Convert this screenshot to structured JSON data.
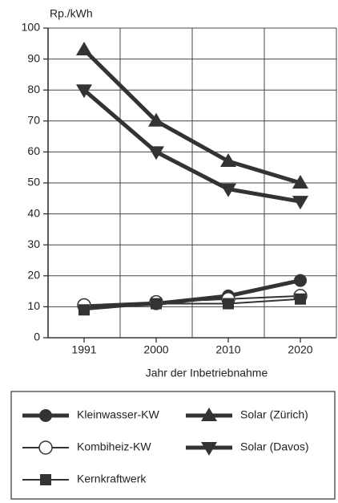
{
  "chart_data": {
    "type": "line",
    "y_label": "Rp./kWh",
    "x_label": "Jahr der Inbetriebnahme",
    "categories": [
      "1991",
      "2000",
      "2010",
      "2020"
    ],
    "ylim": [
      0,
      100
    ],
    "yticks": [
      0,
      10,
      20,
      30,
      40,
      50,
      60,
      70,
      80,
      90,
      100
    ],
    "grid": true,
    "series": [
      {
        "name": "Kleinwasser-KW",
        "color": "#333333",
        "marker": "circle",
        "linewidth": 5,
        "values": [
          10,
          11,
          13.5,
          18.5
        ]
      },
      {
        "name": "Kombiheiz-KW",
        "color": "#333333",
        "marker": "open-circle",
        "linewidth": 2,
        "values": [
          10.5,
          11.5,
          12.5,
          13.5
        ]
      },
      {
        "name": "Kernkraftwerk",
        "color": "#333333",
        "marker": "square",
        "linewidth": 2,
        "values": [
          9,
          11,
          11,
          12.5
        ]
      },
      {
        "name": "Solar (Zürich)",
        "color": "#333333",
        "marker": "triangle-up",
        "linewidth": 5,
        "values": [
          93,
          70,
          57,
          50
        ]
      },
      {
        "name": "Solar (Davos)",
        "color": "#333333",
        "marker": "triangle-down",
        "linewidth": 5,
        "values": [
          80,
          60,
          48,
          44
        ]
      }
    ]
  }
}
